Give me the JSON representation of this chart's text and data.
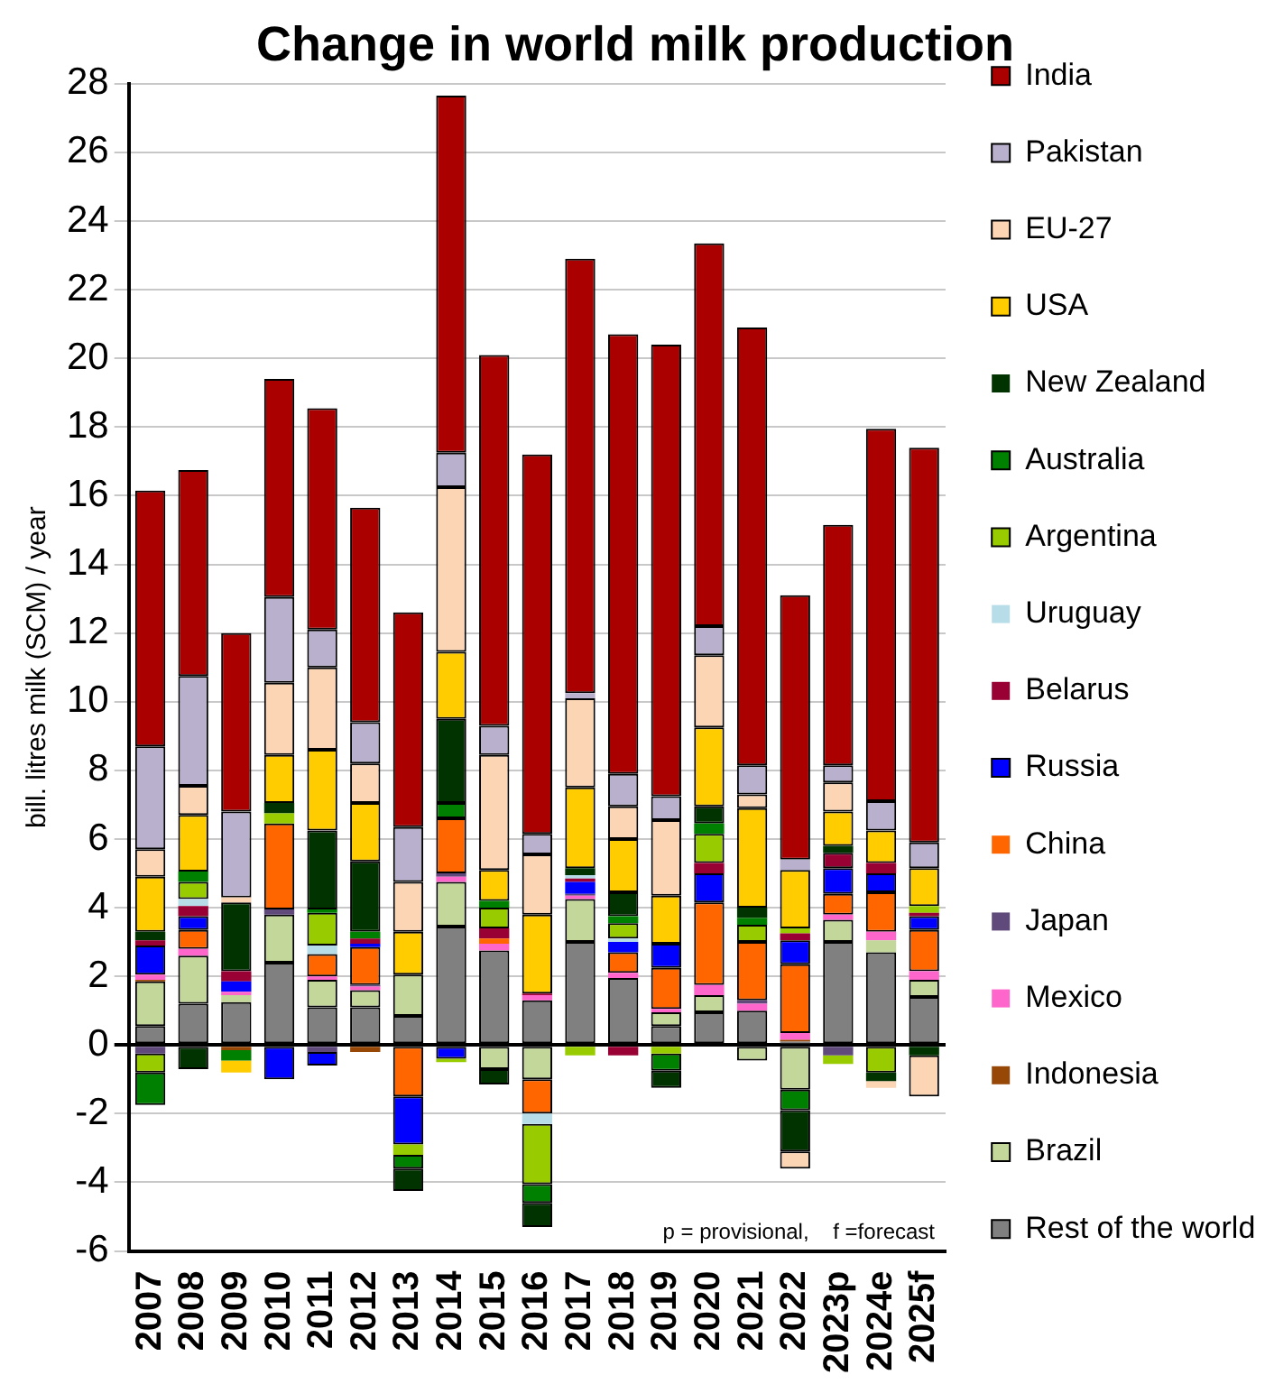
{
  "chart_data": {
    "type": "bar",
    "title": "Change in world milk production",
    "ylabel": "bill. litres milk (SCM) / year",
    "stacked": true,
    "grid": "y",
    "legend": "right",
    "ylim": [
      -6,
      28
    ],
    "yticks": [
      -6,
      -4,
      -2,
      0,
      2,
      4,
      6,
      8,
      10,
      12,
      14,
      16,
      18,
      20,
      22,
      24,
      26,
      28
    ],
    "categories": [
      "2007",
      "2008",
      "2009",
      "2010",
      "2011",
      "2012",
      "2013",
      "2014",
      "2015",
      "2016",
      "2017",
      "2018",
      "2019",
      "2020",
      "2021",
      "2022",
      "2023p",
      "2024e",
      "2025f"
    ],
    "annotations": [
      "p = provisional,    f =forecast"
    ],
    "series": [
      {
        "name": "Rest of the world",
        "color": "#808080",
        "values": [
          0.55,
          1.2,
          1.25,
          2.4,
          1.1,
          1.1,
          0.85,
          3.45,
          2.75,
          1.3,
          3.0,
          1.95,
          0.55,
          0.95,
          1.0,
          0.1,
          3.0,
          2.7,
          1.4
        ]
      },
      {
        "name": "Brazil",
        "color": "#c4d79b",
        "values": [
          1.3,
          1.4,
          0.2,
          1.4,
          0.8,
          0.5,
          1.2,
          1.3,
          -0.7,
          -1.0,
          1.25,
          null,
          0.4,
          0.5,
          -0.45,
          -1.3,
          0.65,
          0.35,
          0.5
        ]
      },
      {
        "name": "Indonesia",
        "color": "#974706",
        "values": [
          0.05,
          null,
          -0.15,
          null,
          null,
          -0.2,
          null,
          null,
          null,
          null,
          null,
          null,
          null,
          null,
          null,
          0.05,
          null,
          null,
          null
        ]
      },
      {
        "name": "Mexico",
        "color": "#ff66cc",
        "values": [
          0.15,
          0.2,
          0.1,
          null,
          0.1,
          0.1,
          null,
          0.15,
          0.2,
          0.15,
          0.1,
          0.15,
          0.1,
          0.3,
          0.2,
          0.2,
          0.15,
          0.25,
          0.25
        ]
      },
      {
        "name": "Japan",
        "color": "#604a7b",
        "values": [
          -0.25,
          null,
          null,
          0.15,
          -0.2,
          0.05,
          null,
          0.1,
          null,
          null,
          0.05,
          null,
          null,
          null,
          0.1,
          null,
          -0.3,
          null,
          null
        ]
      },
      {
        "name": "China",
        "color": "#ff6600",
        "values": [
          null,
          0.55,
          null,
          2.5,
          0.65,
          1.1,
          -1.5,
          1.6,
          0.15,
          -1.0,
          null,
          0.6,
          1.2,
          2.4,
          1.7,
          2.0,
          0.6,
          1.15,
          1.2
        ]
      },
      {
        "name": "Russia",
        "color": "#0000ff",
        "values": [
          0.85,
          0.4,
          0.3,
          -1.0,
          -0.4,
          0.1,
          -1.4,
          -0.4,
          null,
          null,
          0.35,
          0.3,
          0.7,
          0.85,
          null,
          0.7,
          0.75,
          0.55,
          0.4
        ]
      },
      {
        "name": "Belarus",
        "color": "#990033",
        "values": [
          0.15,
          0.3,
          0.3,
          null,
          null,
          0.15,
          null,
          null,
          0.3,
          0.05,
          0.1,
          -0.3,
          null,
          0.3,
          null,
          0.2,
          0.45,
          0.3,
          0.1
        ]
      },
      {
        "name": "Uruguay",
        "color": "#b7dee8",
        "values": [
          null,
          0.2,
          null,
          null,
          0.25,
          null,
          null,
          null,
          null,
          -0.3,
          0.1,
          0.1,
          null,
          null,
          null,
          null,
          null,
          null,
          null
        ]
      },
      {
        "name": "Argentina",
        "color": "#99cc00",
        "values": [
          -0.55,
          0.5,
          null,
          0.3,
          0.95,
          null,
          -0.3,
          -0.1,
          0.6,
          -1.75,
          -0.3,
          0.45,
          -0.25,
          0.85,
          0.5,
          0.15,
          -0.25,
          -0.8,
          0.2
        ]
      },
      {
        "name": "Australia",
        "color": "#008000",
        "values": [
          -0.95,
          0.3,
          -0.3,
          null,
          0.1,
          0.2,
          -0.4,
          0.45,
          0.2,
          -0.55,
          null,
          0.2,
          -0.5,
          0.3,
          0.2,
          -0.6,
          null,
          null,
          null
        ]
      },
      {
        "name": "New Zealand",
        "color": "#003300",
        "values": [
          0.25,
          -0.7,
          2.0,
          0.3,
          2.3,
          2.05,
          -0.65,
          2.45,
          -0.45,
          -0.7,
          0.2,
          0.7,
          -0.5,
          0.5,
          0.3,
          -1.2,
          0.2,
          -0.25,
          -0.3
        ]
      },
      {
        "name": "USA",
        "color": "#ffcc00",
        "values": [
          1.6,
          1.65,
          -0.35,
          1.4,
          2.35,
          1.7,
          1.25,
          1.95,
          0.9,
          2.3,
          2.35,
          1.55,
          1.4,
          2.3,
          2.9,
          1.7,
          1.0,
          0.95,
          1.1
        ]
      },
      {
        "name": "EU-27",
        "color": "#fcd5b4",
        "values": [
          0.8,
          0.85,
          0.15,
          2.1,
          2.4,
          1.15,
          1.45,
          4.8,
          3.35,
          1.75,
          2.6,
          0.95,
          2.2,
          2.1,
          0.4,
          -0.5,
          0.85,
          -0.2,
          -1.2
        ]
      },
      {
        "name": "Pakistan",
        "color": "#b8b0cc",
        "values": [
          3.0,
          3.2,
          2.5,
          2.5,
          1.1,
          1.2,
          1.6,
          1.0,
          0.85,
          0.6,
          0.15,
          0.95,
          0.7,
          0.85,
          0.85,
          0.3,
          0.5,
          0.85,
          0.75
        ]
      },
      {
        "name": "India",
        "color": "#aa0000",
        "values": [
          7.45,
          6.0,
          5.2,
          6.35,
          6.45,
          6.25,
          6.25,
          10.4,
          10.8,
          11.05,
          12.65,
          12.8,
          13.15,
          11.15,
          12.75,
          7.7,
          7.0,
          10.85,
          11.5
        ]
      }
    ]
  }
}
